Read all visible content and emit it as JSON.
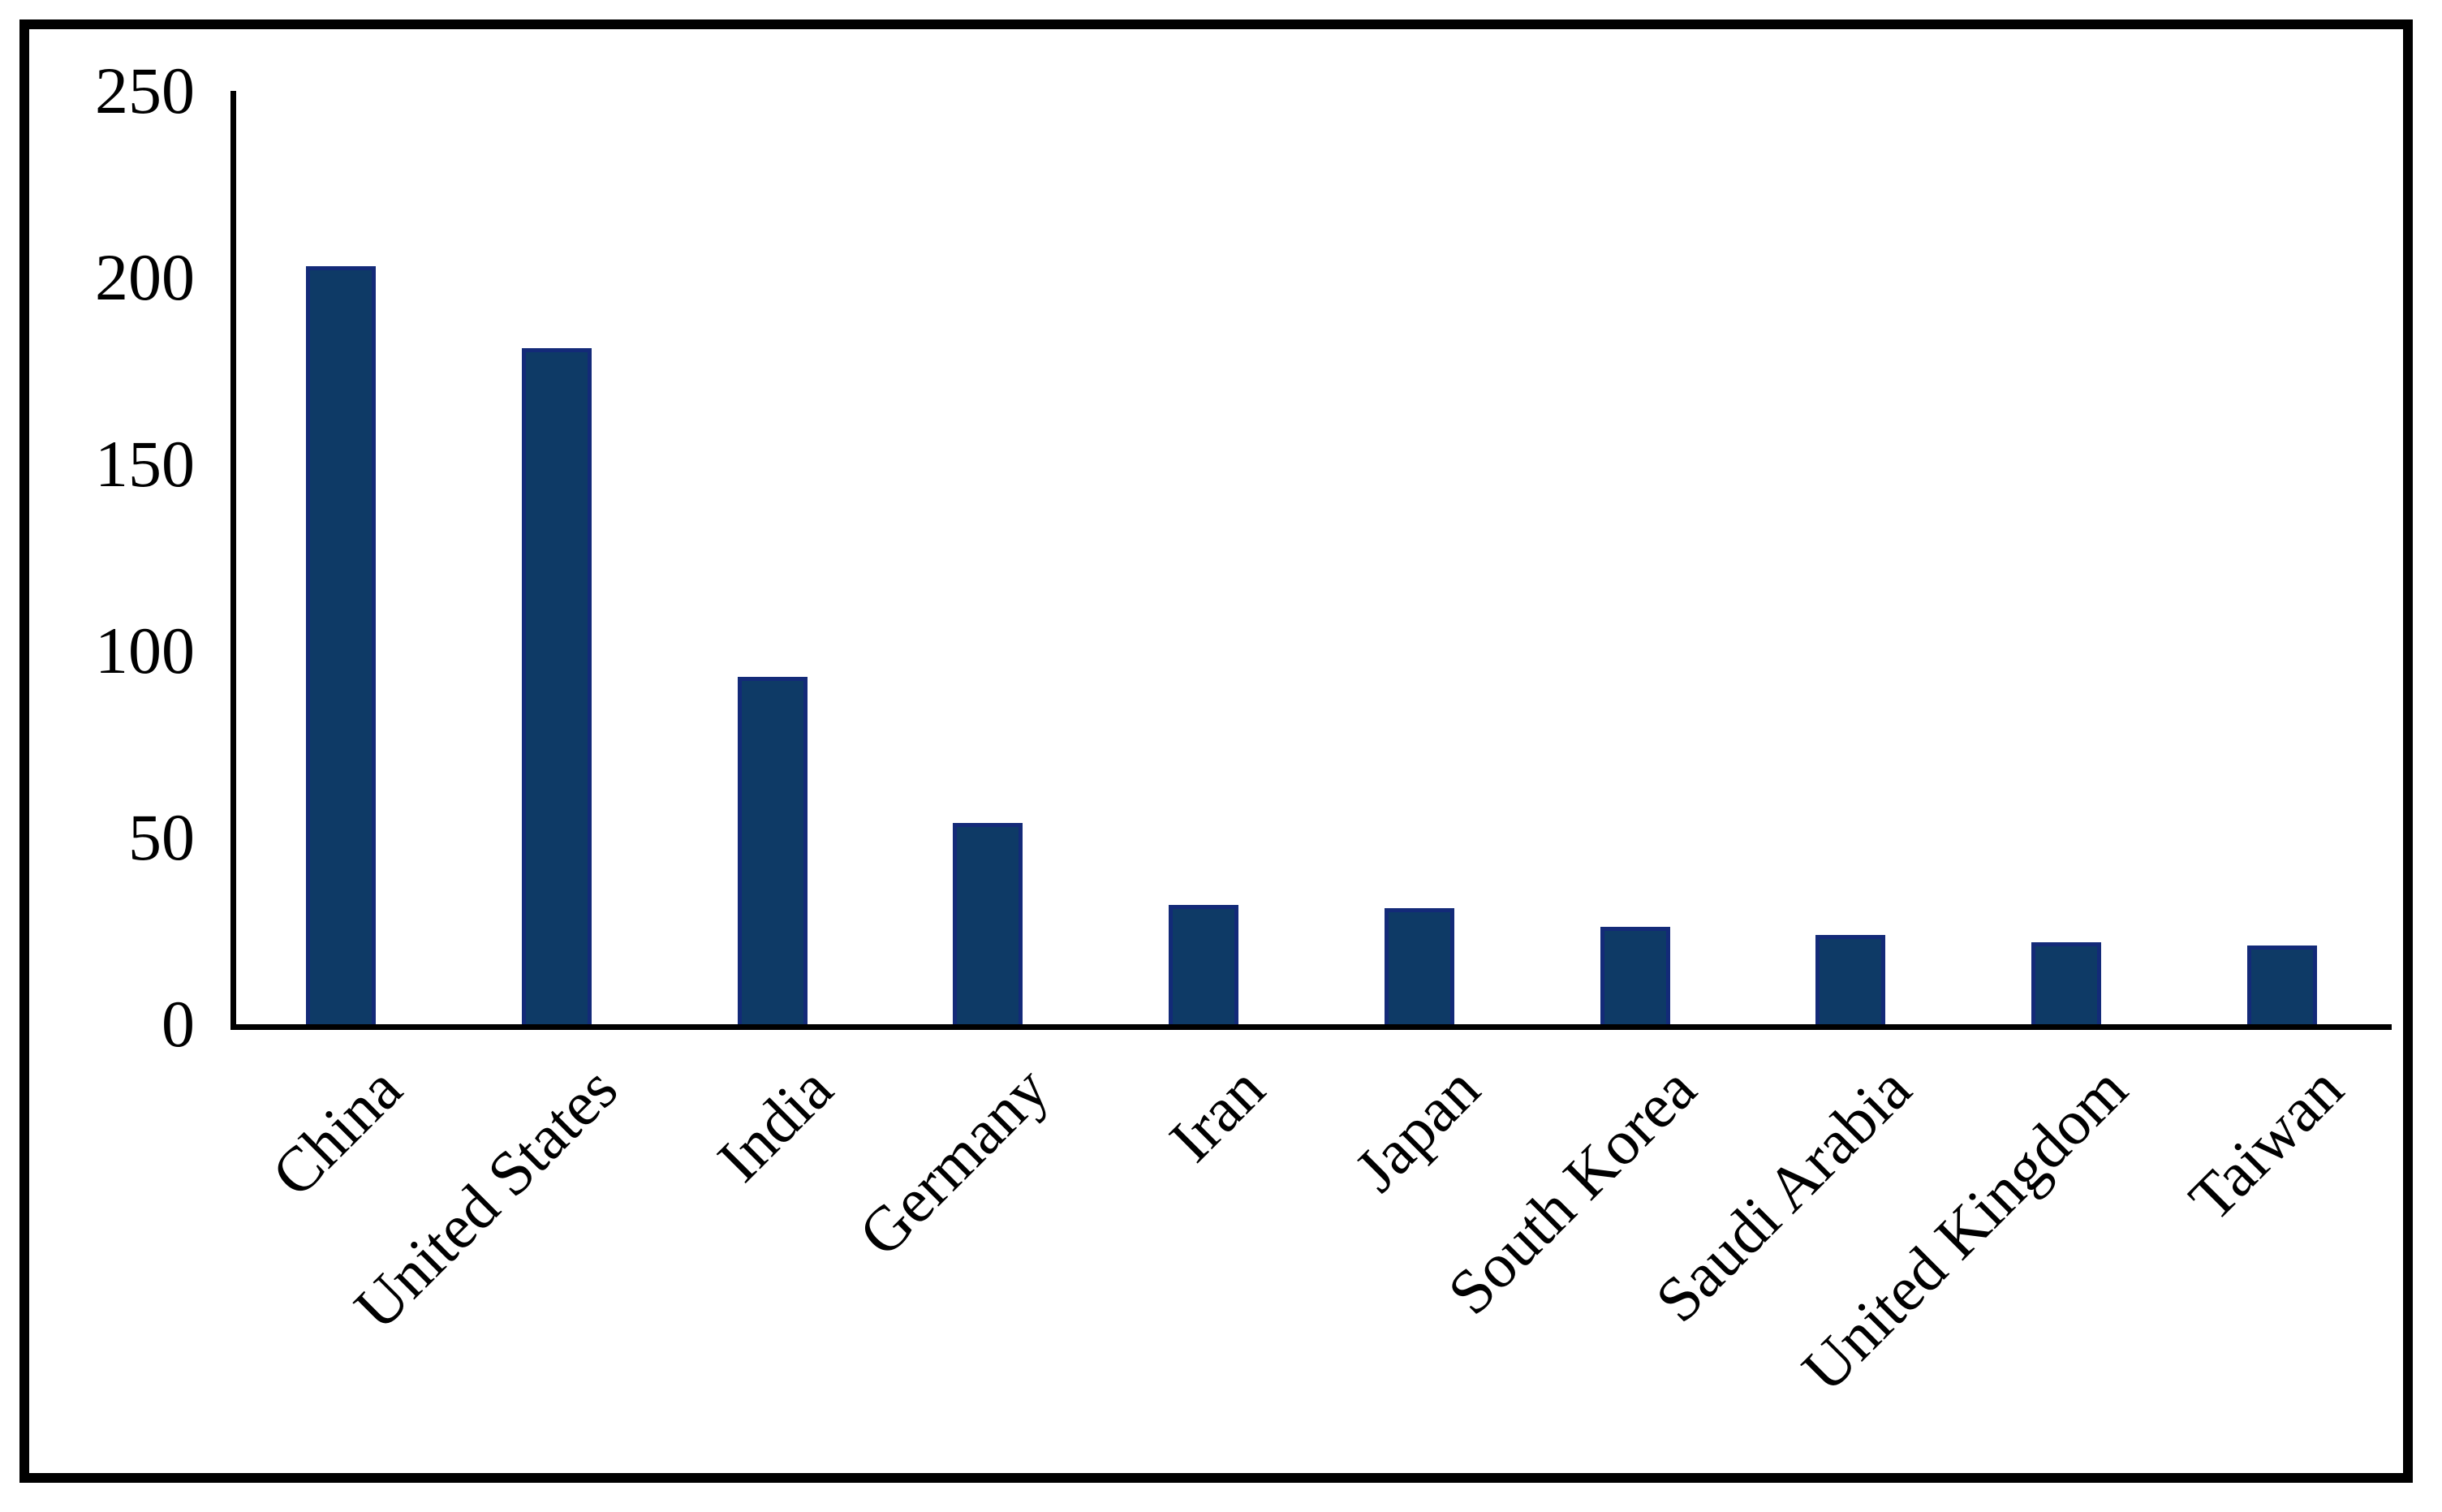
{
  "figure": {
    "background_color": "#ffffff",
    "border_color": "#000000"
  },
  "chart_data": {
    "type": "bar",
    "title": "",
    "xlabel": "",
    "ylabel": "",
    "categories": [
      "China",
      "United States",
      "India",
      "Germany",
      "Iran",
      "Japan",
      "South Korea",
      "Saudi Arabia",
      "United Kingdom",
      "Taiwan"
    ],
    "values": [
      203,
      181,
      93,
      54,
      32,
      31,
      26,
      24,
      22,
      21
    ],
    "ylim": [
      0,
      250
    ],
    "yticks": [
      "0",
      "50",
      "100",
      "150",
      "200",
      "250"
    ],
    "ytick_values": [
      0,
      50,
      100,
      150,
      200,
      250
    ],
    "grid": false,
    "legend": null,
    "bar_color": "#0e3a66",
    "bar_border_color": "#132a78",
    "axis_color": "#000000",
    "tick_label_color": "#000000",
    "xlabel_rotation_deg": 45
  }
}
